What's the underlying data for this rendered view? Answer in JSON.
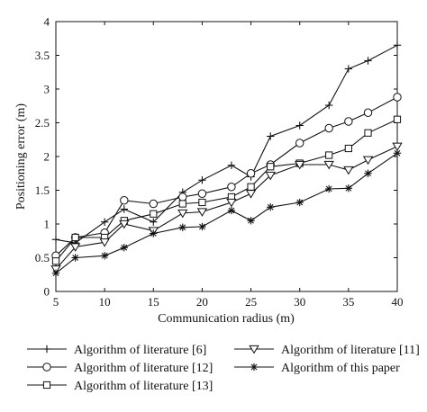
{
  "chart_data": {
    "type": "line",
    "xlabel": "Communication radius (m)",
    "ylabel": "Positioning error (m)",
    "xlim": [
      5,
      40
    ],
    "ylim": [
      0,
      4
    ],
    "xticks": [
      5,
      10,
      15,
      20,
      25,
      30,
      35,
      40
    ],
    "yticks": [
      0,
      0.5,
      1,
      1.5,
      2,
      2.5,
      3,
      3.5,
      4
    ],
    "grid": false,
    "legend_position": "bottom",
    "x": [
      5,
      7,
      10,
      12,
      15,
      18,
      20,
      23,
      25,
      27,
      30,
      33,
      35,
      37,
      40
    ],
    "series": [
      {
        "name": "Algorithm of literature [6]",
        "marker": "plus",
        "values": [
          0.77,
          0.72,
          1.03,
          1.22,
          1.03,
          1.47,
          1.65,
          1.87,
          1.7,
          2.3,
          2.46,
          2.76,
          3.3,
          3.42,
          3.65
        ]
      },
      {
        "name": "Algorithm of literature [12]",
        "marker": "circle",
        "values": [
          0.53,
          0.8,
          0.87,
          1.35,
          1.3,
          1.4,
          1.45,
          1.55,
          1.75,
          1.88,
          2.2,
          2.42,
          2.52,
          2.65,
          2.88
        ]
      },
      {
        "name": "Algorithm of literature [13]",
        "marker": "square",
        "values": [
          0.45,
          0.8,
          0.8,
          1.05,
          1.15,
          1.3,
          1.32,
          1.4,
          1.55,
          1.85,
          1.9,
          2.02,
          2.12,
          2.35,
          2.55
        ]
      },
      {
        "name": "Algorithm of literature [11]",
        "marker": "triangle-down",
        "values": [
          0.33,
          0.66,
          0.73,
          1.0,
          0.9,
          1.16,
          1.18,
          1.32,
          1.45,
          1.72,
          1.88,
          1.88,
          1.8,
          1.95,
          2.15
        ]
      },
      {
        "name": "Algorithm of this paper",
        "marker": "asterisk",
        "values": [
          0.27,
          0.5,
          0.53,
          0.65,
          0.86,
          0.95,
          0.96,
          1.2,
          1.05,
          1.25,
          1.32,
          1.52,
          1.53,
          1.75,
          2.05
        ]
      }
    ]
  }
}
